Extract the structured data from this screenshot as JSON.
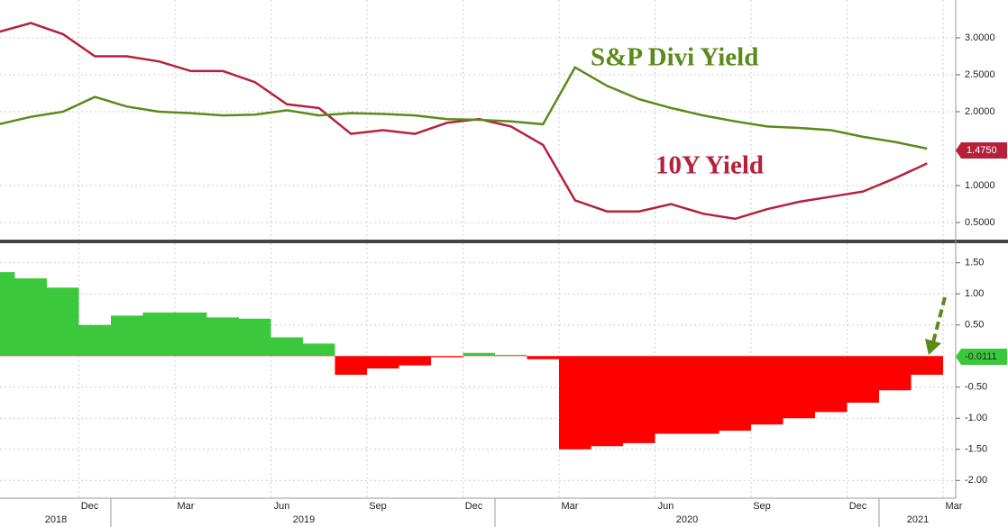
{
  "chart_data": [
    {
      "type": "line",
      "x": [
        "2018-09",
        "2018-10",
        "2018-11",
        "2018-12",
        "2019-01",
        "2019-02",
        "2019-03",
        "2019-04",
        "2019-05",
        "2019-06",
        "2019-07",
        "2019-08",
        "2019-09",
        "2019-10",
        "2019-11",
        "2019-12",
        "2020-01",
        "2020-02",
        "2020-03",
        "2020-04",
        "2020-05",
        "2020-06",
        "2020-07",
        "2020-08",
        "2020-09",
        "2020-10",
        "2020-11",
        "2020-12",
        "2021-01",
        "2021-02"
      ],
      "series": [
        {
          "name": "10Y Yield",
          "color": "#b5213b",
          "values": [
            3.08,
            3.2,
            3.05,
            2.75,
            2.75,
            2.68,
            2.55,
            2.55,
            2.4,
            2.1,
            2.05,
            1.7,
            1.75,
            1.7,
            1.85,
            1.9,
            1.8,
            1.55,
            0.8,
            0.65,
            0.65,
            0.75,
            0.62,
            0.55,
            0.68,
            0.78,
            0.85,
            0.92,
            1.1,
            1.3
          ],
          "last_value": {
            "value": 1.475,
            "label": "1.4750"
          }
        },
        {
          "name": "S&P Divi Yield",
          "color": "#5b8a1a",
          "values": [
            1.83,
            1.93,
            2.0,
            2.2,
            2.07,
            2.0,
            1.98,
            1.95,
            1.96,
            2.02,
            1.95,
            1.98,
            1.97,
            1.95,
            1.9,
            1.89,
            1.87,
            1.83,
            2.6,
            2.35,
            2.17,
            2.05,
            1.95,
            1.87,
            1.8,
            1.78,
            1.75,
            1.66,
            1.59,
            1.5
          ]
        }
      ],
      "ylim": [
        0.25,
        3.5
      ],
      "yticks": [
        {
          "value": 3,
          "label": "3.0000"
        },
        {
          "value": 2.5,
          "label": "2.5000"
        },
        {
          "value": 2,
          "label": "2.0000"
        },
        {
          "value": 1,
          "label": "1.0000"
        },
        {
          "value": 0.5,
          "label": "0.5000"
        }
      ],
      "grid": true
    },
    {
      "type": "bar",
      "x": [
        "2018-09",
        "2018-10",
        "2018-11",
        "2018-12",
        "2019-01",
        "2019-02",
        "2019-03",
        "2019-04",
        "2019-05",
        "2019-06",
        "2019-07",
        "2019-08",
        "2019-09",
        "2019-10",
        "2019-11",
        "2019-12",
        "2020-01",
        "2020-02",
        "2020-03",
        "2020-04",
        "2020-05",
        "2020-06",
        "2020-07",
        "2020-08",
        "2020-09",
        "2020-10",
        "2020-11",
        "2020-12",
        "2021-01",
        "2021-02"
      ],
      "series": [
        {
          "color_positive": "#3cc83c",
          "color_negative": "#ff0000",
          "values": [
            1.35,
            1.25,
            1.1,
            0.5,
            0.65,
            0.7,
            0.7,
            0.62,
            0.6,
            0.3,
            0.2,
            -0.3,
            -0.2,
            -0.15,
            -0.02,
            0.05,
            0.02,
            -0.05,
            -1.5,
            -1.45,
            -1.4,
            -1.25,
            -1.25,
            -1.2,
            -1.1,
            -1.0,
            -0.9,
            -0.75,
            -0.55,
            -0.3
          ],
          "last_value": -0.0111
        }
      ],
      "ylim": [
        -2.3,
        1.8
      ],
      "yticks": [
        {
          "value": 1.5,
          "label": "1.50"
        },
        {
          "value": 1,
          "label": "1.00"
        },
        {
          "value": 0.5,
          "label": "0.50"
        },
        {
          "value": -0.5,
          "label": "-0.50"
        },
        {
          "value": -1,
          "label": "-1.00"
        },
        {
          "value": -1.5,
          "label": "-1.50"
        },
        {
          "value": -2,
          "label": "-2.00"
        }
      ],
      "grid": true
    }
  ],
  "time_axis": {
    "months": [
      "Dec",
      "Mar",
      "Jun",
      "Sep",
      "Dec",
      "Mar",
      "Jun",
      "Sep",
      "Dec",
      "Mar"
    ],
    "years": [
      "2018",
      "2019",
      "2020",
      "2021"
    ]
  }
}
